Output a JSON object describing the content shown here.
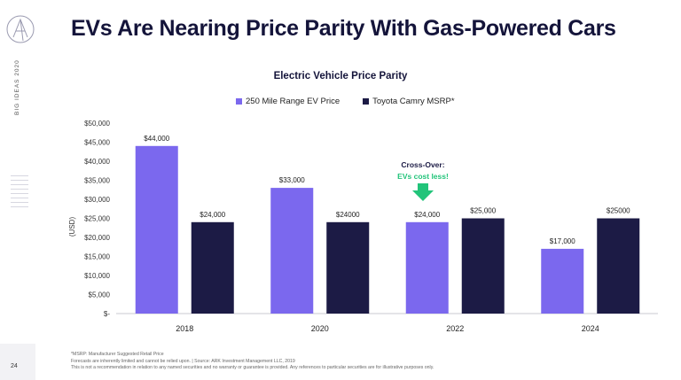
{
  "page": {
    "title": "EVs Are Nearing Price Parity With Gas-Powered Cars",
    "side_label": "BIG IDEAS 2020",
    "page_number": "24"
  },
  "annotation": {
    "line1": "Cross-Over:",
    "line2": "EVs cost less!"
  },
  "footnotes": [
    "*MSRP: Manufacturer Suggested Retail Price",
    "Forecasts are inherently limited and cannot be relied upon.  |  Source: ARK Investment Management LLC, 2019",
    "This is not a recommendation in relation to any named securities and no warranty or guarantee is provided. Any references to particular securities are for illustrative purposes only."
  ],
  "colors": {
    "ev": "#7b68ee",
    "camry": "#1c1b45",
    "arrow": "#22c47a",
    "accent_text": "#22c47a"
  },
  "chart_data": {
    "type": "bar",
    "title": "Electric Vehicle Price Parity",
    "xlabel": "",
    "ylabel": "(USD)",
    "categories": [
      "2018",
      "2020",
      "2022",
      "2024"
    ],
    "series": [
      {
        "name": "250 Mile Range EV Price",
        "values": [
          44000,
          33000,
          24000,
          17000
        ],
        "labels": [
          "$44,000",
          "$33,000",
          "$24,000",
          "$17,000"
        ]
      },
      {
        "name": "Toyota Camry MSRP*",
        "values": [
          24000,
          24000,
          25000,
          25000
        ],
        "labels": [
          "$24,000",
          "$24000",
          "$25,000",
          "$25000"
        ]
      }
    ],
    "ylim": [
      0,
      50000
    ],
    "yticks": [
      0,
      5000,
      10000,
      15000,
      20000,
      25000,
      30000,
      35000,
      40000,
      45000,
      50000
    ],
    "ytick_labels": [
      "$-",
      "$5,000",
      "$10,000",
      "$15,000",
      "$20,000",
      "$25,000",
      "$30,000",
      "$35,000",
      "$40,000",
      "$45,000",
      "$50,000"
    ],
    "grid": false,
    "legend_position": "top"
  }
}
